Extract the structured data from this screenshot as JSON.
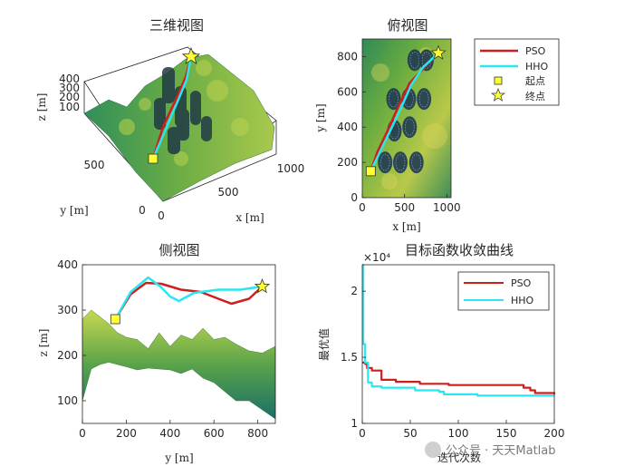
{
  "chart_data": [
    {
      "type": "line",
      "title": "三维视图",
      "xlabel": "x [m]",
      "ylabel": "y [m]",
      "zlabel": "z [m]",
      "x_ticks": [
        "0",
        "500",
        "1000"
      ],
      "y_ticks": [
        "0",
        "500"
      ],
      "z_ticks": [
        "100",
        "200",
        "300",
        "400"
      ],
      "obstacles": "cylinders",
      "series": [
        {
          "name": "PSO",
          "color": "#cc1f1f",
          "x": [
            100,
            250,
            500,
            700,
            900
          ],
          "y": [
            150,
            300,
            500,
            650,
            820
          ],
          "z": [
            280,
            350,
            340,
            330,
            350
          ]
        },
        {
          "name": "HHO",
          "color": "#29e6f0",
          "x": [
            100,
            300,
            500,
            700,
            900
          ],
          "y": [
            150,
            320,
            520,
            680,
            820
          ],
          "z": [
            280,
            370,
            330,
            340,
            350
          ]
        }
      ]
    },
    {
      "type": "line",
      "title": "俯视图",
      "xlabel": "x [m]",
      "ylabel": "y [m]",
      "x_ticks": [
        "0",
        "500",
        "1000"
      ],
      "y_ticks": [
        "0",
        "200",
        "400",
        "600",
        "800"
      ],
      "xlim": [
        0,
        1050
      ],
      "ylim": [
        0,
        900
      ],
      "obstacle_centers": [
        [
          620,
          780
        ],
        [
          760,
          780
        ],
        [
          370,
          560
        ],
        [
          550,
          560
        ],
        [
          730,
          560
        ],
        [
          380,
          380
        ],
        [
          560,
          400
        ],
        [
          270,
          200
        ],
        [
          450,
          200
        ],
        [
          640,
          200
        ]
      ],
      "start": [
        100,
        150
      ],
      "goal": [
        900,
        820
      ],
      "series": [
        {
          "name": "PSO",
          "color": "#cc1f1f",
          "x": [
            100,
            180,
            300,
            430,
            560,
            700,
            900
          ],
          "y": [
            150,
            260,
            380,
            520,
            650,
            720,
            820
          ]
        },
        {
          "name": "HHO",
          "color": "#29e6f0",
          "x": [
            100,
            200,
            320,
            450,
            580,
            720,
            900
          ],
          "y": [
            150,
            250,
            370,
            500,
            640,
            740,
            820
          ]
        }
      ],
      "legend": {
        "placement": "right",
        "entries": [
          "PSO",
          "HHO",
          "起点",
          "终点"
        ]
      }
    },
    {
      "type": "line",
      "title": "侧视图",
      "xlabel": "y [m]",
      "ylabel": "z [m]",
      "x_ticks": [
        "0",
        "200",
        "400",
        "600",
        "800"
      ],
      "y_ticks": [
        "100",
        "200",
        "300",
        "400"
      ],
      "xlim": [
        0,
        880
      ],
      "ylim": [
        50,
        400
      ],
      "start": [
        150,
        280
      ],
      "goal": [
        820,
        352
      ],
      "series": [
        {
          "name": "PSO",
          "color": "#cc1f1f",
          "x": [
            150,
            220,
            290,
            360,
            450,
            540,
            620,
            680,
            760,
            820
          ],
          "y": [
            280,
            335,
            360,
            358,
            345,
            340,
            325,
            314,
            325,
            352
          ]
        },
        {
          "name": "HHO",
          "color": "#29e6f0",
          "x": [
            150,
            220,
            300,
            360,
            400,
            440,
            510,
            620,
            720,
            820
          ],
          "y": [
            280,
            340,
            372,
            350,
            330,
            320,
            338,
            345,
            345,
            352
          ]
        }
      ],
      "terrain_profile": {
        "x": [
          0,
          40,
          80,
          120,
          160,
          200,
          250,
          300,
          350,
          400,
          450,
          500,
          550,
          600,
          650,
          700,
          760,
          820,
          880
        ],
        "top": [
          280,
          300,
          285,
          270,
          250,
          240,
          235,
          215,
          250,
          220,
          245,
          235,
          260,
          235,
          240,
          225,
          210,
          205,
          220
        ],
        "bottom": [
          100,
          170,
          180,
          185,
          180,
          175,
          168,
          172,
          170,
          168,
          160,
          170,
          150,
          140,
          120,
          100,
          100,
          80,
          60
        ]
      }
    },
    {
      "type": "line",
      "title": "目标函数收敛曲线",
      "xlabel": "迭代次数",
      "ylabel": "最优值",
      "x_ticks": [
        "0",
        "50",
        "100",
        "150",
        "200"
      ],
      "y_ticks": [
        "1",
        "1.5",
        "2"
      ],
      "exponent_label": "×10⁴",
      "xlim": [
        0,
        200
      ],
      "ylim": [
        10000,
        22000
      ],
      "series": [
        {
          "name": "PSO",
          "color": "#cc1f1f",
          "x": [
            0,
            3,
            5,
            10,
            20,
            35,
            60,
            90,
            120,
            165,
            168,
            175,
            180,
            200
          ],
          "y": [
            14600,
            14500,
            14200,
            14000,
            13300,
            13150,
            13000,
            12900,
            12900,
            12900,
            12700,
            12500,
            12300,
            12200
          ]
        },
        {
          "name": "HHO",
          "color": "#29e6f0",
          "x": [
            0,
            1,
            3,
            6,
            10,
            20,
            50,
            55,
            80,
            85,
            120,
            180,
            200
          ],
          "y": [
            22000,
            16000,
            14600,
            13100,
            12800,
            12700,
            12700,
            12500,
            12400,
            12200,
            12100,
            12100,
            12100
          ]
        }
      ],
      "legend": {
        "placement": "top-right",
        "entries": [
          "PSO",
          "HHO"
        ]
      }
    }
  ],
  "watermark": "公众号 · 天天Matlab",
  "colors": {
    "pso": "#cc1f1f",
    "hho": "#29e6f0",
    "marker": "#ffff33",
    "terrain_low": "#1b7b5c",
    "terrain_high": "#c7d850"
  }
}
